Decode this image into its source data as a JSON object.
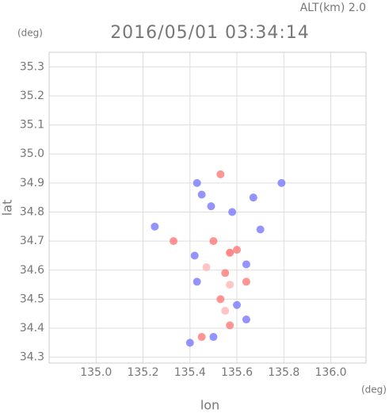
{
  "chart_data": {
    "type": "scatter",
    "altitude_label": "ALT(km) 2.0",
    "title": "2016/05/01 03:34:14",
    "y_unit": "(deg)",
    "x_unit": "(deg)",
    "ylabel": "lat",
    "xlabel": "lon",
    "xlim": [
      134.8,
      136.15
    ],
    "ylim": [
      34.28,
      35.35
    ],
    "xticks": [
      {
        "value": 135,
        "label": "135.0"
      },
      135.2,
      135.4,
      135.6,
      135.8,
      {
        "value": 136,
        "label": "136.0"
      }
    ],
    "yticks": [
      34.3,
      34.4,
      34.5,
      34.6,
      34.7,
      34.8,
      34.9,
      {
        "value": 35,
        "label": "35.0"
      },
      35.1,
      35.2,
      35.3
    ],
    "grid": true,
    "x": [
      135.43,
      135.53,
      135.45,
      135.49,
      135.58,
      135.67,
      135.7,
      135.79,
      135.25,
      135.33,
      135.5,
      135.57,
      135.6,
      135.42,
      135.47,
      135.64,
      135.55,
      135.43,
      135.57,
      135.64,
      135.53,
      135.6,
      135.55,
      135.57,
      135.64,
      135.5,
      135.45,
      135.4
    ],
    "y": [
      34.9,
      34.93,
      34.86,
      34.82,
      34.8,
      34.85,
      34.74,
      34.9,
      34.75,
      34.7,
      34.7,
      34.66,
      34.67,
      34.65,
      34.61,
      34.62,
      34.59,
      34.56,
      34.55,
      34.56,
      34.5,
      34.48,
      34.46,
      34.41,
      34.43,
      34.37,
      34.37,
      34.35
    ],
    "colors": [
      "#7070ff",
      "#ff7070",
      "#7070ff",
      "#7070ff",
      "#7070ff",
      "#7070ff",
      "#7070ff",
      "#7070ff",
      "#7070ff",
      "#ff7070",
      "#ff7070",
      "#ff6060",
      "#ff7070",
      "#7070ff",
      "#ffb0b0",
      "#7070ff",
      "#ff7070",
      "#7070ff",
      "#ffb0b0",
      "#ff7070",
      "#ff7070",
      "#7070ff",
      "#ffb0b0",
      "#ff7070",
      "#7070ff",
      "#7070ff",
      "#ff7070",
      "#7070ff"
    ]
  }
}
